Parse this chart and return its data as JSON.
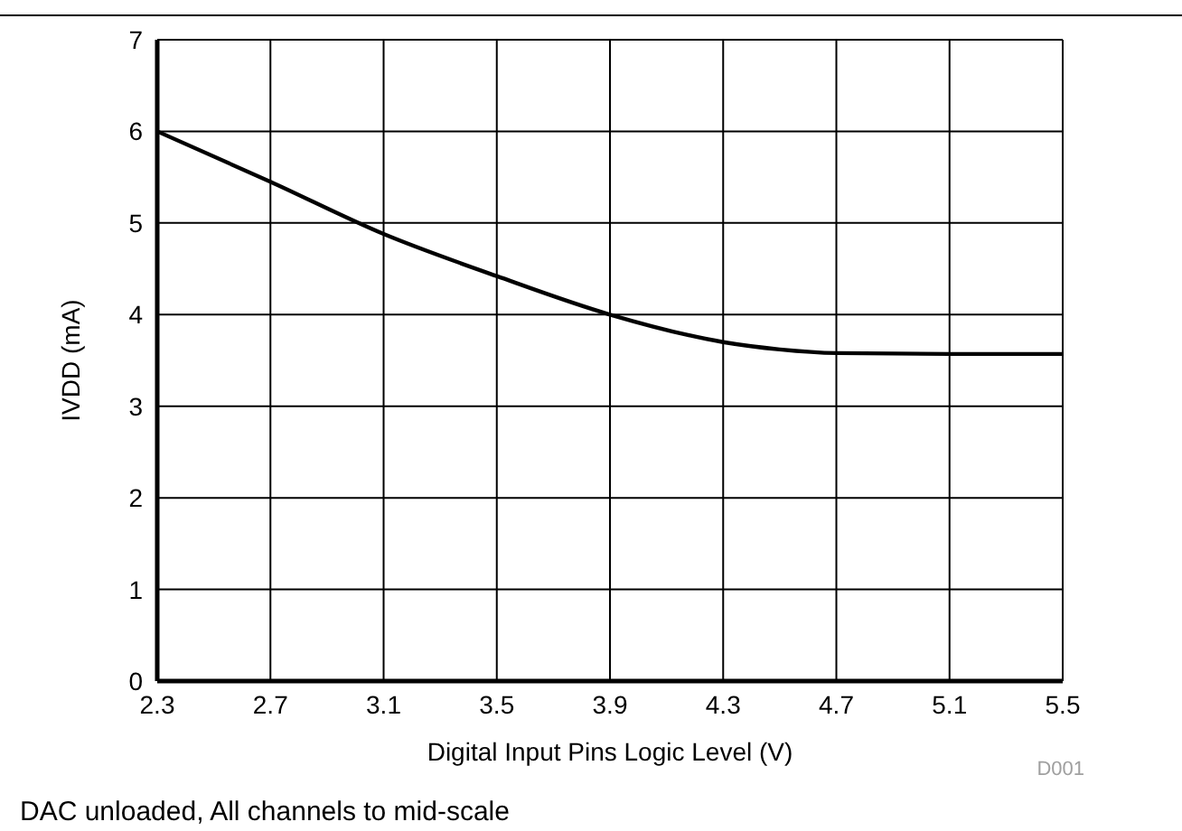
{
  "chart_data": {
    "type": "line",
    "xlabel": "Digital Input Pins Logic Level (V)",
    "ylabel": "IVDD (mA)",
    "x": [
      2.3,
      2.7,
      3.1,
      3.5,
      3.9,
      4.3,
      4.5,
      4.7,
      5.1,
      5.5
    ],
    "series": [
      {
        "color": "#000000",
        "values": [
          6.0,
          5.45,
          4.88,
          4.42,
          4.0,
          3.7,
          3.62,
          3.58,
          3.57,
          3.57
        ]
      }
    ],
    "xlim": [
      2.3,
      5.5
    ],
    "xticks": [
      2.3,
      2.7,
      3.1,
      3.5,
      3.9,
      4.3,
      4.7,
      5.1,
      5.5
    ],
    "ylim": [
      0,
      7
    ],
    "yticks": [
      0,
      1,
      2,
      3,
      4,
      5,
      6,
      7
    ],
    "grid": true,
    "legend": false,
    "marker": "none",
    "line_style": "solid",
    "annotations": [
      "D001",
      "DAC unloaded, All channels to mid-scale"
    ]
  }
}
